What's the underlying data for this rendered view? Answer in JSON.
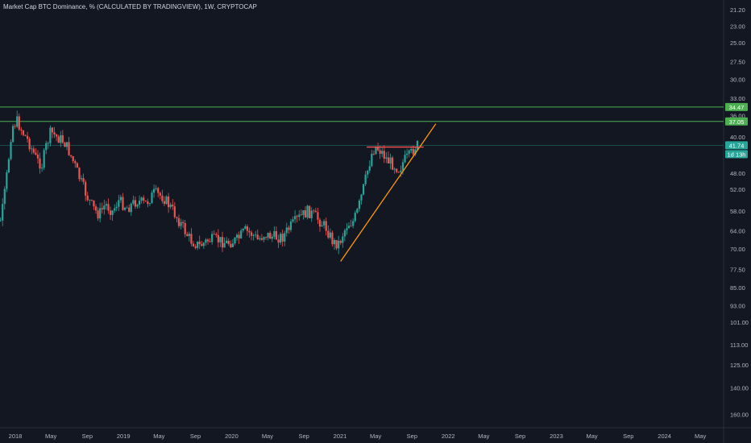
{
  "chart_data": {
    "type": "candlestick",
    "title": "Market Cap BTC Dominance, % (CALCULATED BY TRADINGVIEW), 1W, CRYPTOCAP",
    "y_axis": {
      "scale": "log",
      "inverted": true,
      "position": "right",
      "ticks": [
        "21.20",
        "23.00",
        "25.00",
        "27.50",
        "30.00",
        "33.00",
        "36.00",
        "40.00",
        "44.00",
        "48.00",
        "52.00",
        "58.00",
        "64.00",
        "70.00",
        "77.50",
        "85.00",
        "93.00",
        "101.00",
        "113.00",
        "125.00",
        "140.00",
        "160.00"
      ],
      "ylim": [
        20.2,
        171
      ]
    },
    "x_axis": {
      "ticks": [
        "2018",
        "May",
        "Sep",
        "2019",
        "May",
        "Sep",
        "2020",
        "May",
        "Sep",
        "2021",
        "May",
        "Sep",
        "2022",
        "May",
        "Sep",
        "2023",
        "May",
        "Sep",
        "2024",
        "May"
      ]
    },
    "price_labels": [
      {
        "text": "34.47",
        "color": "#4caf50"
      },
      {
        "text": "37.05",
        "color": "#4caf50"
      },
      {
        "text": "41.74",
        "color": "#26a69a"
      },
      {
        "text": "1d 13h",
        "color": "#26a69a"
      }
    ],
    "horizontal_lines": [
      {
        "value": 34.47,
        "color": "#4caf50"
      },
      {
        "value": 37.05,
        "color": "#4caf50"
      }
    ],
    "current_value": 41.74,
    "trendlines": [
      {
        "x1": "2021-01-03",
        "y1": 74.5,
        "x2": "2021-11-20",
        "y2": 37.5,
        "color": "#ff9800"
      },
      {
        "x1": "2021-04-01",
        "y1": 42.1,
        "x2": "2021-10-10",
        "y2": 42.1,
        "color": "#ff5252"
      }
    ],
    "series": {
      "name": "BTC Dominance",
      "anchors": [
        [
          "2017-10-01",
          68
        ],
        [
          "2017-11-15",
          60
        ],
        [
          "2017-12-20",
          38
        ],
        [
          "2018-01-08",
          37
        ],
        [
          "2018-01-25",
          39
        ],
        [
          "2018-02-15",
          41
        ],
        [
          "2018-03-15",
          45
        ],
        [
          "2018-04-01",
          46
        ],
        [
          "2018-04-15",
          42
        ],
        [
          "2018-05-01",
          39
        ],
        [
          "2018-05-20",
          40
        ],
        [
          "2018-06-15",
          41
        ],
        [
          "2018-07-01",
          43
        ],
        [
          "2018-07-20",
          46
        ],
        [
          "2018-08-10",
          50
        ],
        [
          "2018-09-01",
          54
        ],
        [
          "2018-09-20",
          57
        ],
        [
          "2018-10-10",
          59
        ],
        [
          "2018-11-01",
          56
        ],
        [
          "2018-11-25",
          58
        ],
        [
          "2018-12-15",
          55
        ],
        [
          "2019-01-15",
          57
        ],
        [
          "2019-02-15",
          55
        ],
        [
          "2019-03-15",
          56
        ],
        [
          "2019-04-15",
          53
        ],
        [
          "2019-05-15",
          54
        ],
        [
          "2019-06-10",
          57
        ],
        [
          "2019-06-25",
          59
        ],
        [
          "2019-07-15",
          62
        ],
        [
          "2019-08-15",
          67
        ],
        [
          "2019-09-15",
          69
        ],
        [
          "2019-10-15",
          67
        ],
        [
          "2019-11-15",
          67
        ],
        [
          "2019-12-15",
          68
        ],
        [
          "2020-01-20",
          67
        ],
        [
          "2020-02-15",
          64
        ],
        [
          "2020-03-10",
          65
        ],
        [
          "2020-03-30",
          67
        ],
        [
          "2020-04-20",
          65
        ],
        [
          "2020-05-20",
          66
        ],
        [
          "2020-06-20",
          66
        ],
        [
          "2020-07-15",
          63
        ],
        [
          "2020-08-15",
          60
        ],
        [
          "2020-09-15",
          58
        ],
        [
          "2020-10-15",
          60
        ],
        [
          "2020-11-15",
          63
        ],
        [
          "2020-12-10",
          68
        ],
        [
          "2020-12-30",
          68
        ],
        [
          "2021-01-10",
          65
        ],
        [
          "2021-01-25",
          62
        ],
        [
          "2021-02-15",
          61
        ],
        [
          "2021-03-01",
          58
        ],
        [
          "2021-03-20",
          52
        ],
        [
          "2021-04-05",
          47
        ],
        [
          "2021-04-20",
          43
        ],
        [
          "2021-05-01",
          42
        ],
        [
          "2021-05-20",
          43
        ],
        [
          "2021-06-10",
          45
        ],
        [
          "2021-07-01",
          46
        ],
        [
          "2021-07-20",
          47
        ],
        [
          "2021-08-05",
          45
        ],
        [
          "2021-08-25",
          44
        ],
        [
          "2021-09-10",
          42
        ],
        [
          "2021-09-20",
          41.74
        ]
      ]
    }
  }
}
